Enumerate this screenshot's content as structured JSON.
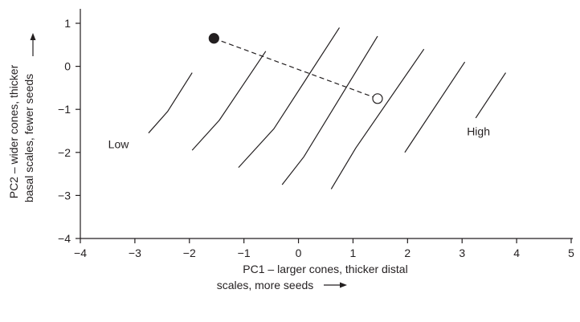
{
  "chart_data": {
    "type": "line",
    "title": "",
    "xlabel_lines": [
      "PC1 – larger cones, thicker distal",
      "scales, more seeds"
    ],
    "ylabel_lines": [
      "PC2 – wider cones, thicker",
      "basal scales, fewer seeds"
    ],
    "xlim": [
      -4,
      5
    ],
    "ylim": [
      -4,
      1
    ],
    "xticks": [
      -4,
      -3,
      -2,
      -1,
      0,
      1,
      2,
      3,
      4,
      5
    ],
    "yticks": [
      -4,
      -3,
      -2,
      -1,
      0,
      1
    ],
    "grid": false,
    "legend": "none",
    "annotations": [
      {
        "text": "Low",
        "x": -3.3,
        "y": -1.9
      },
      {
        "text": "High",
        "x": 3.3,
        "y": -1.6
      }
    ],
    "series": [
      {
        "style": "solid",
        "x": [
          -2.75,
          -2.4,
          -1.95
        ],
        "y": [
          -1.55,
          -1.05,
          -0.15
        ]
      },
      {
        "style": "solid",
        "x": [
          -1.95,
          -1.45,
          -0.6
        ],
        "y": [
          -1.95,
          -1.25,
          0.35
        ]
      },
      {
        "style": "solid",
        "x": [
          -1.1,
          -0.45,
          0.75
        ],
        "y": [
          -2.35,
          -1.45,
          0.9
        ]
      },
      {
        "style": "solid",
        "x": [
          -0.3,
          0.1,
          1.45
        ],
        "y": [
          -2.75,
          -2.1,
          0.7
        ]
      },
      {
        "style": "solid",
        "x": [
          0.6,
          1.05,
          2.3
        ],
        "y": [
          -2.85,
          -1.9,
          0.4
        ]
      },
      {
        "style": "solid",
        "x": [
          1.95,
          3.05
        ],
        "y": [
          -2.0,
          0.1
        ]
      },
      {
        "style": "solid",
        "x": [
          3.25,
          3.8
        ],
        "y": [
          -1.2,
          -0.15
        ]
      },
      {
        "style": "dashed",
        "x": [
          -1.55,
          1.45
        ],
        "y": [
          0.65,
          -0.75
        ]
      }
    ],
    "points": [
      {
        "x": -1.55,
        "y": 0.65,
        "fill": "filled"
      },
      {
        "x": 1.45,
        "y": -0.75,
        "fill": "open"
      }
    ]
  },
  "colors": {
    "ink": "#231f20",
    "background": "#ffffff"
  }
}
